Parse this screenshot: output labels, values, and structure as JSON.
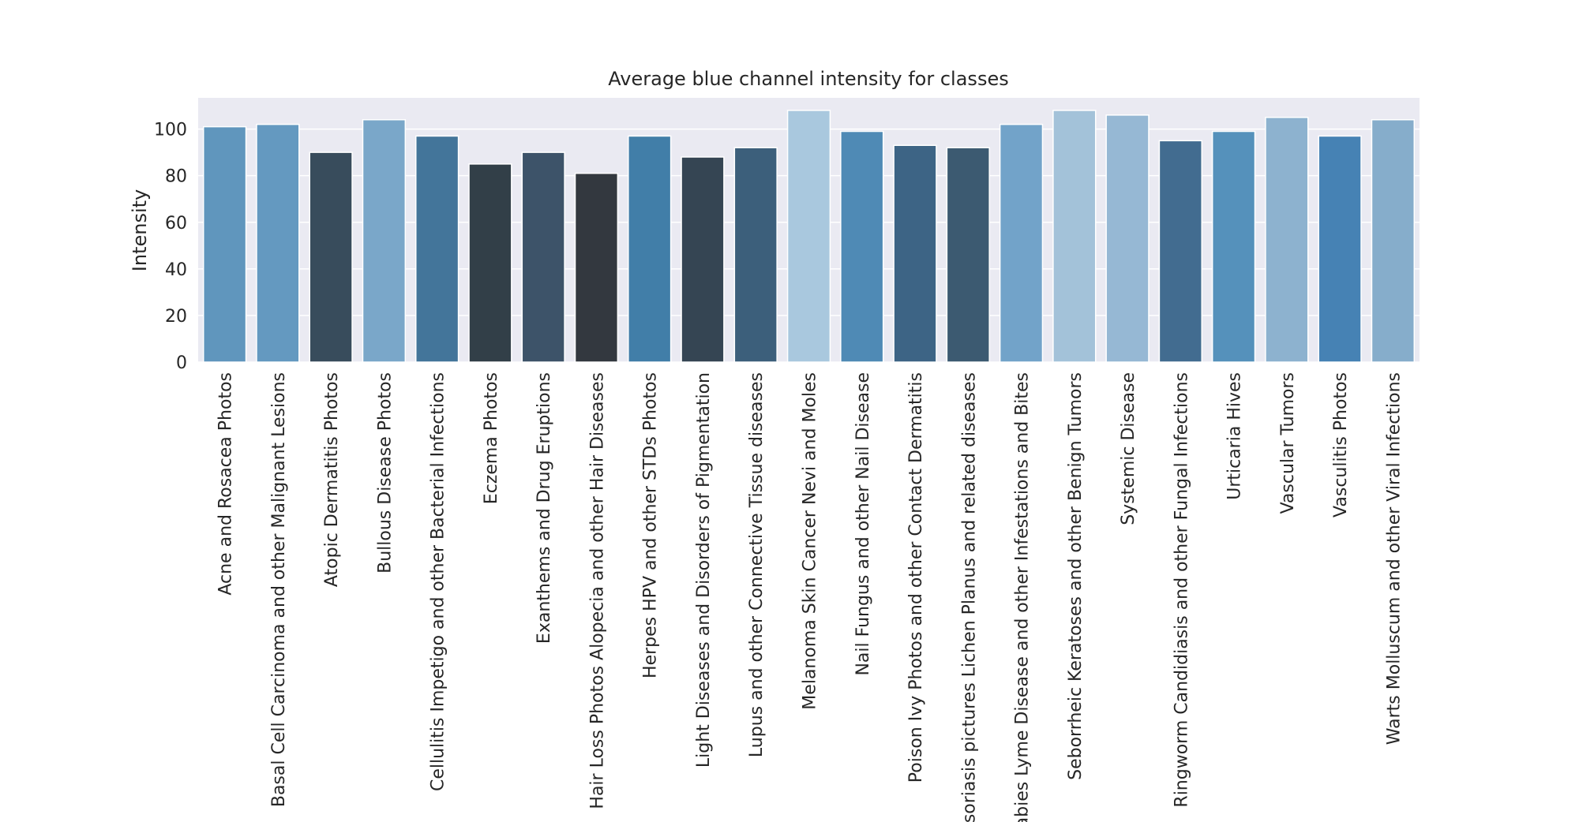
{
  "chart_data": {
    "type": "bar",
    "title": "Average blue channel intensity for classes",
    "y_label": "Intensity",
    "categories": [
      "Acne and Rosacea Photos",
      "Basal Cell Carcinoma and other Malignant Lesions",
      "Atopic Dermatitis Photos",
      "Bullous Disease Photos",
      "Cellulitis Impetigo and other Bacterial Infections",
      "Eczema Photos",
      "Exanthems and Drug Eruptions",
      "Hair Loss Photos Alopecia and other Hair Diseases",
      "Herpes HPV and other STDs Photos",
      "Light Diseases and Disorders of Pigmentation",
      "Lupus and other Connective Tissue diseases",
      "Melanoma Skin Cancer Nevi and Moles",
      "Nail Fungus and other Nail Disease",
      "Poison Ivy Photos and other Contact Dermatitis",
      "Psoriasis pictures Lichen Planus and related diseases",
      "Scabies Lyme Disease and other Infestations and Bites",
      "Seborrheic Keratoses and other Benign Tumors",
      "Systemic Disease",
      "Ringworm Candidiasis and other Fungal Infections",
      "Urticaria Hives",
      "Vascular Tumors",
      "Vasculitis Photos",
      "Warts Molluscum and other Viral Infections"
    ],
    "values": [
      101,
      102,
      90,
      104,
      97,
      85,
      90,
      81,
      97,
      88,
      92,
      108,
      99,
      93,
      92,
      102,
      108,
      106,
      95,
      99,
      105,
      97,
      104
    ],
    "colors": [
      "#6096bd",
      "#6499c0",
      "#384c5c",
      "#7aa7c9",
      "#43759a",
      "#323f48",
      "#3d5369",
      "#33383f",
      "#417ea8",
      "#354553",
      "#3c5f7b",
      "#a9c8de",
      "#4f8ab5",
      "#3d6485",
      "#3c5a71",
      "#72a3c9",
      "#a3c2d9",
      "#96b8d4",
      "#426c90",
      "#5591bb",
      "#8db2cf",
      "#4682b4",
      "#86adcb"
    ],
    "ylim": [
      0,
      113.4
    ],
    "yticks": [
      0,
      20,
      40,
      60,
      80,
      100
    ],
    "grid": true
  }
}
